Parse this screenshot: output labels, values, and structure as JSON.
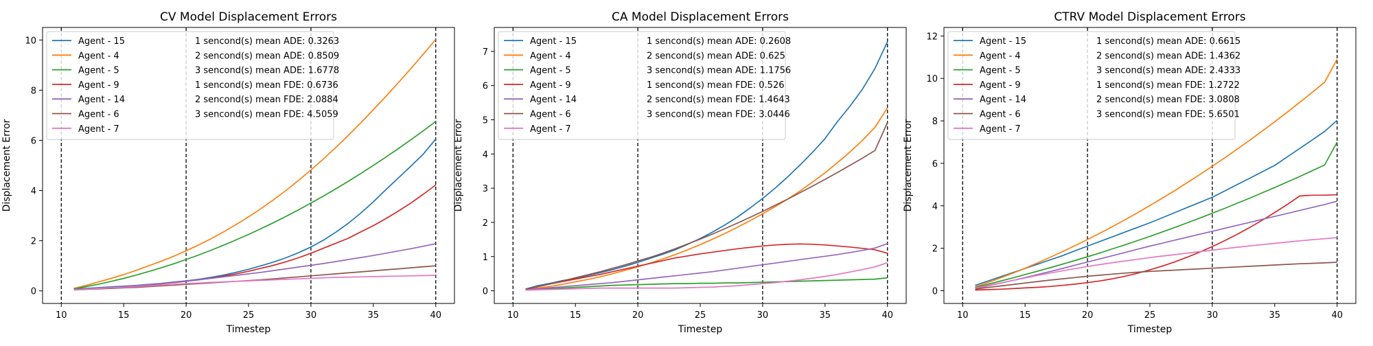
{
  "figure": {
    "background": "#ffffff",
    "colors": {
      "tab_blue": "#1f77b4",
      "tab_orange": "#ff7f0e",
      "tab_green": "#2ca02c",
      "tab_red": "#d62728",
      "tab_purple": "#9467bd",
      "tab_brown": "#8c564b",
      "tab_pink": "#e377c2",
      "marker_line": "#000000"
    }
  },
  "chart_data": [
    {
      "type": "line",
      "title": "CV Model Displacement Errors",
      "xlabel": "Timestep",
      "ylabel": "Displacement Error",
      "xlim": [
        8.5,
        41.5
      ],
      "ylim": [
        -0.5,
        10.5
      ],
      "xticks": [
        10,
        15,
        20,
        25,
        30,
        35,
        40
      ],
      "yticks": [
        0,
        2,
        4,
        6,
        8,
        10
      ],
      "grid": false,
      "legend_position": "top-left",
      "vlines": [
        10,
        20,
        30,
        40
      ],
      "x": [
        11,
        12,
        13,
        14,
        15,
        16,
        17,
        18,
        19,
        20,
        21,
        22,
        23,
        24,
        25,
        26,
        27,
        28,
        29,
        30,
        31,
        32,
        33,
        34,
        35,
        36,
        37,
        38,
        39,
        40
      ],
      "series": [
        {
          "name": "Agent - 15",
          "color": "#1f77b4",
          "values": [
            0.08,
            0.1,
            0.13,
            0.16,
            0.19,
            0.22,
            0.26,
            0.3,
            0.35,
            0.4,
            0.46,
            0.54,
            0.63,
            0.74,
            0.86,
            1.0,
            1.15,
            1.32,
            1.52,
            1.75,
            2.02,
            2.34,
            2.7,
            3.1,
            3.55,
            4.03,
            4.5,
            4.97,
            5.45,
            6.05
          ]
        },
        {
          "name": "Agent - 4",
          "color": "#ff7f0e",
          "values": [
            0.1,
            0.22,
            0.36,
            0.5,
            0.65,
            0.82,
            1.0,
            1.18,
            1.38,
            1.6,
            1.83,
            2.08,
            2.35,
            2.64,
            2.95,
            3.28,
            3.63,
            4.0,
            4.4,
            4.82,
            5.26,
            5.72,
            6.2,
            6.7,
            7.22,
            7.75,
            8.3,
            8.86,
            9.43,
            10.02
          ]
        },
        {
          "name": "Agent - 5",
          "color": "#2ca02c",
          "values": [
            0.08,
            0.17,
            0.27,
            0.38,
            0.5,
            0.63,
            0.77,
            0.92,
            1.08,
            1.25,
            1.43,
            1.62,
            1.82,
            2.03,
            2.25,
            2.48,
            2.72,
            2.97,
            3.23,
            3.5,
            3.78,
            4.07,
            4.37,
            4.68,
            5.0,
            5.33,
            5.67,
            6.02,
            6.38,
            6.75
          ]
        },
        {
          "name": "Agent - 9",
          "color": "#d62728",
          "values": [
            0.05,
            0.07,
            0.1,
            0.13,
            0.16,
            0.2,
            0.24,
            0.28,
            0.33,
            0.38,
            0.44,
            0.51,
            0.59,
            0.68,
            0.78,
            0.9,
            1.02,
            1.16,
            1.32,
            1.5,
            1.7,
            1.9,
            2.1,
            2.35,
            2.6,
            2.88,
            3.18,
            3.5,
            3.85,
            4.22
          ]
        },
        {
          "name": "Agent - 14",
          "color": "#9467bd",
          "values": [
            0.05,
            0.08,
            0.11,
            0.14,
            0.17,
            0.21,
            0.25,
            0.29,
            0.34,
            0.39,
            0.44,
            0.5,
            0.56,
            0.62,
            0.68,
            0.74,
            0.81,
            0.88,
            0.95,
            1.02,
            1.09,
            1.17,
            1.25,
            1.33,
            1.41,
            1.5,
            1.59,
            1.68,
            1.78,
            1.88
          ]
        },
        {
          "name": "Agent - 6",
          "color": "#8c564b",
          "values": [
            0.04,
            0.06,
            0.08,
            0.1,
            0.12,
            0.14,
            0.17,
            0.2,
            0.23,
            0.26,
            0.29,
            0.32,
            0.35,
            0.38,
            0.41,
            0.44,
            0.48,
            0.52,
            0.56,
            0.6,
            0.64,
            0.68,
            0.72,
            0.76,
            0.8,
            0.84,
            0.88,
            0.92,
            0.96,
            1.0
          ]
        },
        {
          "name": "Agent - 7",
          "color": "#e377c2",
          "values": [
            0.05,
            0.07,
            0.1,
            0.12,
            0.14,
            0.17,
            0.2,
            0.23,
            0.26,
            0.29,
            0.31,
            0.34,
            0.36,
            0.38,
            0.4,
            0.42,
            0.44,
            0.46,
            0.48,
            0.5,
            0.52,
            0.54,
            0.55,
            0.56,
            0.57,
            0.58,
            0.59,
            0.6,
            0.61,
            0.62
          ]
        }
      ],
      "stats": [
        "1 sencond(s) mean ADE: 0.3263",
        "2 sencond(s) mean ADE: 0.8509",
        "3 sencond(s) mean ADE: 1.6778",
        "1 sencond(s) mean FDE: 0.6736",
        "2 sencond(s) mean FDE: 2.0884",
        "3 sencond(s) mean FDE: 4.5059"
      ]
    },
    {
      "type": "line",
      "title": "CA Model Displacement Errors",
      "xlabel": "Timestep",
      "ylabel": "Displacement Error",
      "xlim": [
        8.5,
        41.5
      ],
      "ylim": [
        -0.37,
        7.7
      ],
      "xticks": [
        10,
        15,
        20,
        25,
        30,
        35,
        40
      ],
      "yticks": [
        0,
        1,
        2,
        3,
        4,
        5,
        6,
        7
      ],
      "grid": false,
      "legend_position": "top-left",
      "vlines": [
        10,
        20,
        30,
        40
      ],
      "x": [
        11,
        12,
        13,
        14,
        15,
        16,
        17,
        18,
        19,
        20,
        21,
        22,
        23,
        24,
        25,
        26,
        27,
        28,
        29,
        30,
        31,
        32,
        33,
        34,
        35,
        36,
        37,
        38,
        39,
        40
      ],
      "series": [
        {
          "name": "Agent - 15",
          "color": "#1f77b4",
          "values": [
            0.05,
            0.15,
            0.22,
            0.3,
            0.36,
            0.45,
            0.53,
            0.62,
            0.72,
            0.83,
            0.95,
            1.07,
            1.2,
            1.36,
            1.53,
            1.72,
            1.93,
            2.16,
            2.42,
            2.7,
            3.0,
            3.33,
            3.68,
            4.05,
            4.45,
            4.95,
            5.4,
            5.9,
            6.5,
            7.28
          ]
        },
        {
          "name": "Agent - 4",
          "color": "#ff7f0e",
          "values": [
            0.03,
            0.08,
            0.13,
            0.19,
            0.26,
            0.33,
            0.41,
            0.5,
            0.6,
            0.7,
            0.81,
            0.93,
            1.06,
            1.2,
            1.35,
            1.51,
            1.68,
            1.86,
            2.05,
            2.25,
            2.46,
            2.68,
            2.92,
            3.18,
            3.45,
            3.75,
            4.06,
            4.4,
            4.78,
            5.35
          ]
        },
        {
          "name": "Agent - 5",
          "color": "#2ca02c",
          "values": [
            0.02,
            0.04,
            0.06,
            0.08,
            0.1,
            0.12,
            0.14,
            0.16,
            0.17,
            0.18,
            0.19,
            0.2,
            0.21,
            0.21,
            0.22,
            0.22,
            0.23,
            0.23,
            0.24,
            0.25,
            0.26,
            0.27,
            0.28,
            0.29,
            0.3,
            0.31,
            0.32,
            0.33,
            0.34,
            0.38
          ]
        },
        {
          "name": "Agent - 9",
          "color": "#d62728",
          "values": [
            0.04,
            0.12,
            0.2,
            0.27,
            0.34,
            0.41,
            0.48,
            0.56,
            0.64,
            0.72,
            0.8,
            0.88,
            0.96,
            1.02,
            1.08,
            1.13,
            1.18,
            1.23,
            1.27,
            1.31,
            1.34,
            1.36,
            1.37,
            1.36,
            1.34,
            1.31,
            1.28,
            1.24,
            1.2,
            1.1
          ]
        },
        {
          "name": "Agent - 14",
          "color": "#9467bd",
          "values": [
            0.03,
            0.06,
            0.09,
            0.12,
            0.15,
            0.18,
            0.21,
            0.24,
            0.28,
            0.32,
            0.36,
            0.4,
            0.44,
            0.48,
            0.52,
            0.56,
            0.61,
            0.66,
            0.71,
            0.76,
            0.81,
            0.86,
            0.91,
            0.96,
            1.01,
            1.06,
            1.12,
            1.18,
            1.25,
            1.38
          ]
        },
        {
          "name": "Agent - 6",
          "color": "#8c564b",
          "values": [
            0.04,
            0.12,
            0.2,
            0.29,
            0.38,
            0.47,
            0.56,
            0.66,
            0.76,
            0.87,
            0.98,
            1.1,
            1.23,
            1.37,
            1.51,
            1.66,
            1.82,
            1.98,
            2.15,
            2.32,
            2.5,
            2.68,
            2.87,
            3.06,
            3.26,
            3.46,
            3.67,
            3.88,
            4.1,
            4.92
          ]
        },
        {
          "name": "Agent - 7",
          "color": "#e377c2",
          "values": [
            0.02,
            0.03,
            0.04,
            0.05,
            0.06,
            0.07,
            0.08,
            0.08,
            0.08,
            0.08,
            0.08,
            0.08,
            0.08,
            0.09,
            0.1,
            0.11,
            0.13,
            0.15,
            0.18,
            0.21,
            0.24,
            0.28,
            0.32,
            0.37,
            0.42,
            0.48,
            0.55,
            0.62,
            0.7,
            0.82
          ]
        }
      ],
      "stats": [
        "1 sencond(s) mean ADE: 0.2608",
        "2 sencond(s) mean ADE: 0.625",
        "3 sencond(s) mean ADE: 1.1756",
        "1 sencond(s) mean FDE: 0.526",
        "2 sencond(s) mean FDE: 1.4643",
        "3 sencond(s) mean FDE: 3.0446"
      ]
    },
    {
      "type": "line",
      "title": "CTRV Model Displacement Errors",
      "xlabel": "Timestep",
      "ylabel": "Displacement Error",
      "xlim": [
        8.5,
        41.5
      ],
      "ylim": [
        -0.6,
        12.4
      ],
      "xticks": [
        10,
        15,
        20,
        25,
        30,
        35,
        40
      ],
      "yticks": [
        0,
        2,
        4,
        6,
        8,
        10,
        12
      ],
      "grid": false,
      "legend_position": "top-left",
      "vlines": [
        10,
        20,
        30,
        40
      ],
      "x": [
        11,
        12,
        13,
        14,
        15,
        16,
        17,
        18,
        19,
        20,
        21,
        22,
        23,
        24,
        25,
        26,
        27,
        28,
        29,
        30,
        31,
        32,
        33,
        34,
        35,
        36,
        37,
        38,
        39,
        40
      ],
      "series": [
        {
          "name": "Agent - 15",
          "color": "#1f77b4",
          "values": [
            0.25,
            0.45,
            0.65,
            0.85,
            1.05,
            1.25,
            1.45,
            1.65,
            1.88,
            2.1,
            2.32,
            2.54,
            2.76,
            2.98,
            3.2,
            3.44,
            3.68,
            3.92,
            4.16,
            4.4,
            4.7,
            5.0,
            5.3,
            5.6,
            5.9,
            6.3,
            6.7,
            7.1,
            7.5,
            8.02
          ]
        },
        {
          "name": "Agent - 4",
          "color": "#ff7f0e",
          "values": [
            0.18,
            0.38,
            0.6,
            0.82,
            1.06,
            1.31,
            1.57,
            1.84,
            2.12,
            2.41,
            2.71,
            3.02,
            3.34,
            3.67,
            4.01,
            4.36,
            4.72,
            5.09,
            5.47,
            5.86,
            6.26,
            6.67,
            7.09,
            7.52,
            7.96,
            8.41,
            8.87,
            9.34,
            9.82,
            10.9
          ]
        },
        {
          "name": "Agent - 5",
          "color": "#2ca02c",
          "values": [
            0.15,
            0.3,
            0.45,
            0.6,
            0.76,
            0.92,
            1.08,
            1.25,
            1.42,
            1.6,
            1.78,
            1.97,
            2.16,
            2.36,
            2.56,
            2.77,
            2.98,
            3.2,
            3.42,
            3.65,
            3.88,
            4.12,
            4.36,
            4.61,
            4.86,
            5.12,
            5.38,
            5.65,
            5.92,
            7.0
          ]
        },
        {
          "name": "Agent - 9",
          "color": "#d62728",
          "values": [
            0.03,
            0.05,
            0.07,
            0.1,
            0.13,
            0.16,
            0.2,
            0.25,
            0.31,
            0.38,
            0.46,
            0.56,
            0.68,
            0.82,
            0.98,
            1.16,
            1.36,
            1.58,
            1.82,
            2.08,
            2.36,
            2.66,
            2.98,
            3.32,
            3.68,
            4.06,
            4.46,
            4.5,
            4.5,
            4.52
          ]
        },
        {
          "name": "Agent - 14",
          "color": "#9467bd",
          "values": [
            0.1,
            0.22,
            0.35,
            0.48,
            0.62,
            0.76,
            0.9,
            1.05,
            1.2,
            1.35,
            1.5,
            1.65,
            1.8,
            1.95,
            2.1,
            2.24,
            2.38,
            2.52,
            2.66,
            2.8,
            2.94,
            3.08,
            3.22,
            3.36,
            3.5,
            3.64,
            3.78,
            3.92,
            4.06,
            4.22
          ]
        },
        {
          "name": "Agent - 6",
          "color": "#8c564b",
          "values": [
            0.08,
            0.15,
            0.22,
            0.29,
            0.36,
            0.43,
            0.5,
            0.56,
            0.62,
            0.68,
            0.73,
            0.78,
            0.83,
            0.87,
            0.91,
            0.94,
            0.97,
            1.0,
            1.03,
            1.06,
            1.09,
            1.12,
            1.15,
            1.18,
            1.21,
            1.24,
            1.27,
            1.29,
            1.31,
            1.34
          ]
        },
        {
          "name": "Agent - 7",
          "color": "#e377c2",
          "values": [
            0.12,
            0.24,
            0.36,
            0.48,
            0.6,
            0.72,
            0.83,
            0.94,
            1.04,
            1.14,
            1.23,
            1.32,
            1.4,
            1.48,
            1.56,
            1.63,
            1.7,
            1.77,
            1.84,
            1.91,
            1.98,
            2.05,
            2.11,
            2.17,
            2.23,
            2.29,
            2.35,
            2.4,
            2.45,
            2.5
          ]
        }
      ],
      "stats": [
        "1 sencond(s) mean ADE: 0.6615",
        "2 sencond(s) mean ADE: 1.4362",
        "3 sencond(s) mean ADE: 2.4333",
        "1 sencond(s) mean FDE: 1.2722",
        "2 sencond(s) mean FDE: 3.0808",
        "3 sencond(s) mean FDE: 5.6501"
      ]
    }
  ]
}
